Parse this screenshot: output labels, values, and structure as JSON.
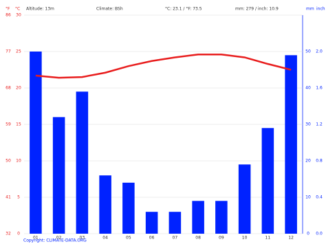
{
  "chart_data": {
    "type": "bar",
    "header": {
      "f_unit": "°F",
      "c_unit": "°C",
      "altitude": "Altitude: 13m",
      "climate": "Climate: BSh",
      "temp": "°C: 23.1 / °F: 73.5",
      "precip": "mm: 279 / inch: 10.9",
      "mm_unit": "mm",
      "inch_unit": "inch"
    },
    "copyright": "Copyright: CLIMATE-DATA.ORG",
    "categories": [
      "01",
      "02",
      "03",
      "04",
      "05",
      "06",
      "07",
      "08",
      "09",
      "10",
      "11",
      "12"
    ],
    "series": [
      {
        "type": "bar",
        "axis": "y2",
        "color": "#0022ff",
        "values": [
          50,
          32,
          39,
          16,
          14,
          6,
          6,
          9,
          9,
          19,
          29,
          49
        ]
      },
      {
        "type": "line",
        "axis": "y",
        "color": "#e81c1c",
        "values": [
          21.7,
          21.4,
          21.5,
          22.1,
          23.0,
          23.7,
          24.2,
          24.6,
          24.6,
          24.2,
          23.3,
          22.5
        ]
      }
    ],
    "ylim": [
      0,
      30
    ],
    "yticks": [
      0,
      5,
      10,
      15,
      20,
      25,
      30
    ],
    "ylim_f": [
      32,
      86
    ],
    "yticks_f": [
      32,
      41,
      50,
      59,
      68,
      77,
      86
    ],
    "y2lim": [
      0,
      60
    ],
    "y2ticks": [
      0,
      10,
      20,
      30,
      40,
      50
    ],
    "y2lim_inch": [
      0,
      2.4
    ],
    "y2ticks_inch": [
      {
        "value": 0,
        "label": "0.0"
      },
      {
        "value": 0.4,
        "label": "0.4"
      },
      {
        "value": 0.8,
        "label": "0.8"
      },
      {
        "value": 1.2,
        "label": "1.2"
      },
      {
        "value": 1.6,
        "label": "1.6"
      },
      {
        "value": 2.0,
        "label": "2.0"
      }
    ],
    "grid": true
  }
}
